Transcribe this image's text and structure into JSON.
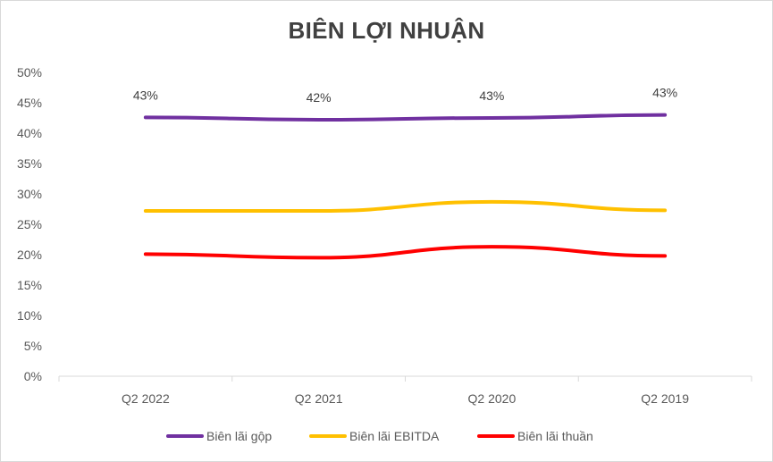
{
  "chart_data": {
    "type": "line",
    "title": "BIÊN LỢI NHUẬN",
    "xlabel": "",
    "ylabel": "",
    "categories": [
      "Q2 2022",
      "Q2 2021",
      "Q2 2020",
      "Q2 2019"
    ],
    "ylim": [
      0,
      50
    ],
    "y_ticks": [
      "0%",
      "5%",
      "10%",
      "15%",
      "20%",
      "25%",
      "30%",
      "35%",
      "40%",
      "45%",
      "50%"
    ],
    "grid": false,
    "legend_position": "bottom",
    "series": [
      {
        "name": "Biên lãi gộp",
        "color": "#7030A0",
        "values": [
          42.6,
          42.2,
          42.5,
          43.0
        ],
        "data_labels": [
          "43%",
          "42%",
          "43%",
          "43%"
        ]
      },
      {
        "name": "Biên lãi EBITDA",
        "color": "#FFC000",
        "values": [
          27.2,
          27.2,
          28.7,
          27.3
        ]
      },
      {
        "name": "Biên lãi thuần",
        "color": "#FF0000",
        "values": [
          20.1,
          19.5,
          21.3,
          19.8
        ]
      }
    ]
  }
}
